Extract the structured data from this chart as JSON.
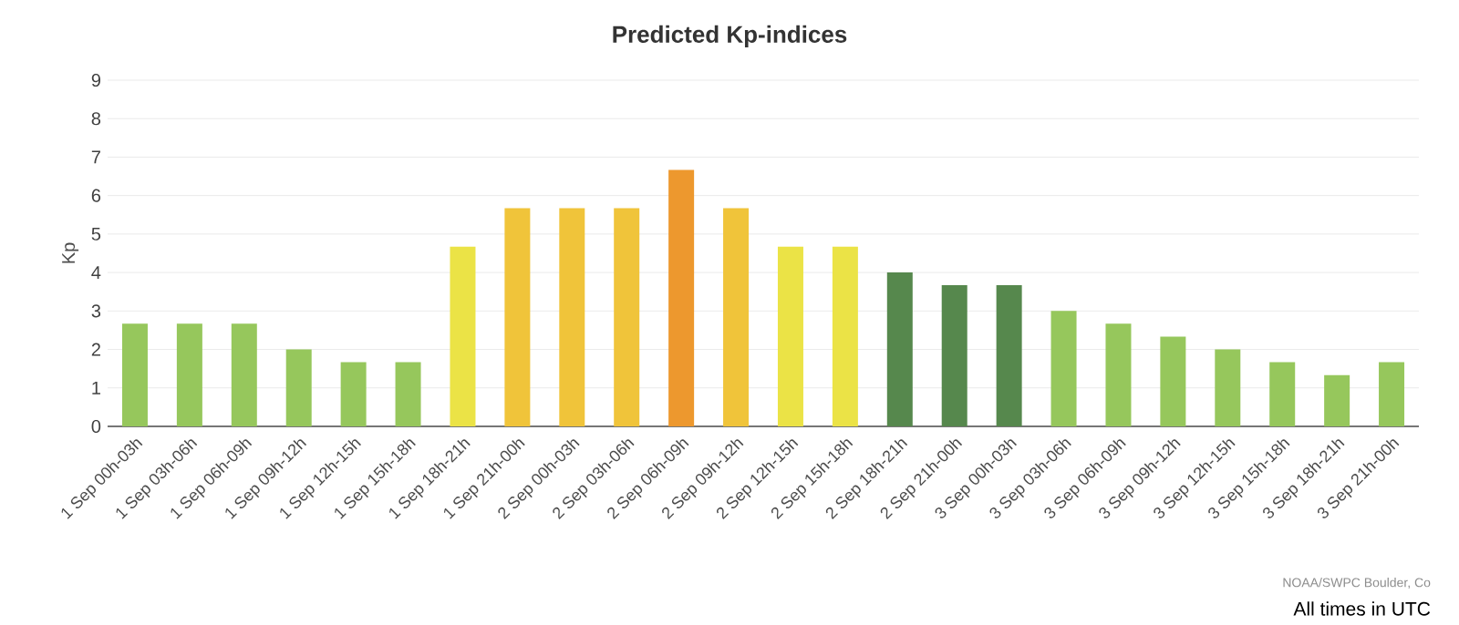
{
  "chart_data": {
    "type": "bar",
    "title": "Predicted Kp-indices",
    "ylabel": "Kp",
    "categories": [
      "1 Sep 00h-03h",
      "1 Sep 03h-06h",
      "1 Sep 06h-09h",
      "1 Sep 09h-12h",
      "1 Sep 12h-15h",
      "1 Sep 15h-18h",
      "1 Sep 18h-21h",
      "1 Sep 21h-00h",
      "2 Sep 00h-03h",
      "2 Sep 03h-06h",
      "2 Sep 06h-09h",
      "2 Sep 09h-12h",
      "2 Sep 12h-15h",
      "2 Sep 15h-18h",
      "2 Sep 18h-21h",
      "2 Sep 21h-00h",
      "3 Sep 00h-03h",
      "3 Sep 03h-06h",
      "3 Sep 06h-09h",
      "3 Sep 09h-12h",
      "3 Sep 12h-15h",
      "3 Sep 15h-18h",
      "3 Sep 18h-21h",
      "3 Sep 21h-00h"
    ],
    "values": [
      2.67,
      2.67,
      2.67,
      2.0,
      1.67,
      1.67,
      4.67,
      5.67,
      5.67,
      5.67,
      6.67,
      5.67,
      4.67,
      4.67,
      4.0,
      3.67,
      3.67,
      3.0,
      2.67,
      2.33,
      2.0,
      1.67,
      1.33,
      1.67
    ],
    "colors": [
      "#96c75c",
      "#96c75c",
      "#96c75c",
      "#96c75c",
      "#96c75c",
      "#96c75c",
      "#ebe346",
      "#f0c43a",
      "#f0c43a",
      "#f0c43a",
      "#ed982e",
      "#f0c43a",
      "#ebe346",
      "#ebe346",
      "#56884d",
      "#56884d",
      "#56884d",
      "#96c75c",
      "#96c75c",
      "#96c75c",
      "#96c75c",
      "#96c75c",
      "#96c75c",
      "#96c75c"
    ],
    "ylim": [
      0,
      9
    ],
    "yticks": [
      0,
      1,
      2,
      3,
      4,
      5,
      6,
      7,
      8,
      9
    ],
    "grid": "y",
    "annotations": [
      "NOAA/SWPC Boulder, Co",
      "All times in UTC"
    ]
  }
}
